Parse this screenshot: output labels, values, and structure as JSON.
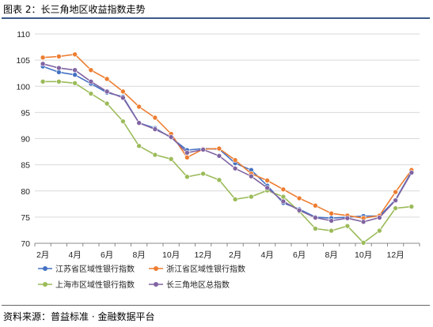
{
  "header": {
    "title": "图表 2：长三角地区收益指数走势"
  },
  "footer": {
    "source": "资料来源：普益标准 · 金融数据平台"
  },
  "chart_data": {
    "type": "line",
    "title": "图表 2：长三角地区收益指数走势",
    "xlabel": "",
    "ylabel": "",
    "ylim": [
      70,
      110
    ],
    "y_ticks": [
      70,
      75,
      80,
      85,
      90,
      95,
      100,
      105,
      110
    ],
    "x": [
      "2月",
      "3月",
      "4月",
      "5月",
      "6月",
      "7月",
      "8月",
      "9月",
      "10月",
      "11月",
      "12月",
      "1月",
      "2月",
      "3月",
      "4月",
      "5月",
      "6月",
      "7月",
      "8月",
      "9月",
      "10月",
      "11月",
      "12月",
      "1月"
    ],
    "x_tick_labels": [
      "2月",
      "4月",
      "6月",
      "8月",
      "10月",
      "12月",
      "2月",
      "4月",
      "6月",
      "8月",
      "10月",
      "12月"
    ],
    "grid": "horizontal",
    "legend_position": "bottom",
    "series": [
      {
        "name": "江苏省区域性银行指数",
        "color": "#4472c4",
        "values": [
          103.8,
          102.7,
          102.2,
          100.5,
          98.8,
          98.0,
          93.0,
          92.0,
          90.2,
          87.8,
          88.1,
          88.0,
          85.3,
          84.0,
          81.0,
          77.7,
          76.5,
          75.0,
          74.8,
          75.0,
          75.2,
          75.2,
          78.3,
          83.7
        ]
      },
      {
        "name": "浙江省区域性银行指数",
        "color": "#ed7d31",
        "values": [
          105.5,
          105.7,
          106.1,
          103.1,
          101.4,
          99.0,
          96.1,
          94.0,
          90.9,
          86.4,
          88.0,
          88.1,
          85.9,
          83.3,
          82.0,
          80.3,
          78.6,
          77.2,
          75.7,
          75.3,
          74.8,
          75.3,
          79.8,
          84.0
        ]
      },
      {
        "name": "上海市区域性银行指数",
        "color": "#9bbb59",
        "values": [
          100.9,
          100.9,
          100.6,
          98.6,
          96.7,
          93.3,
          88.6,
          86.9,
          86.1,
          82.7,
          83.3,
          82.1,
          78.4,
          78.9,
          80.1,
          78.9,
          76.1,
          72.8,
          72.4,
          73.3,
          70.1,
          72.4,
          76.7,
          77.0
        ]
      },
      {
        "name": "长三角地区总指数",
        "color": "#8064a2",
        "values": [
          104.3,
          103.5,
          103.1,
          100.9,
          99.0,
          97.8,
          93.0,
          91.8,
          90.3,
          87.3,
          87.9,
          86.7,
          84.3,
          82.8,
          80.6,
          78.0,
          76.3,
          74.9,
          74.3,
          74.8,
          74.1,
          74.9,
          78.2,
          83.5
        ]
      }
    ]
  }
}
